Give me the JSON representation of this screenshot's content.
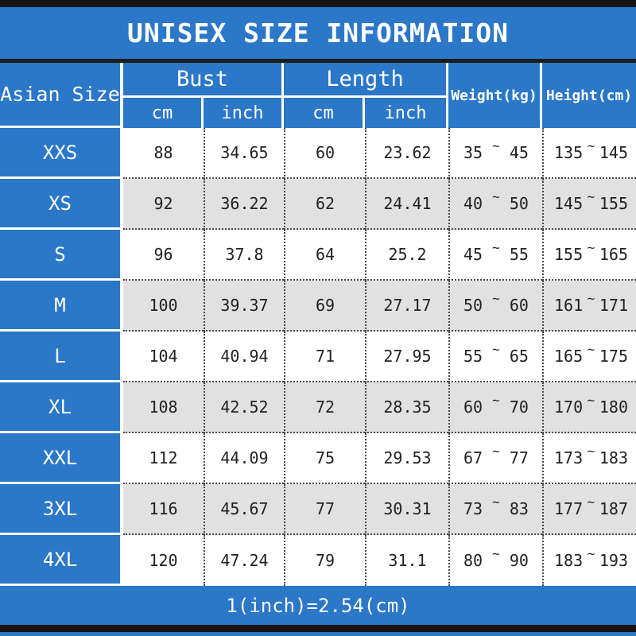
{
  "title": "UNISEX SIZE INFORMATION",
  "footer_note": "1(inch)=2.54(cm)",
  "colors": {
    "accent_blue": "#2b77c8",
    "bar_black": "#151515",
    "row_alt_gray": "#e1e1e1",
    "text_dark": "#222222"
  },
  "table": {
    "headers": {
      "size": "Asian Size",
      "bust": "Bust",
      "length": "Length",
      "weight": "Weight(kg)",
      "height": "Height(cm)",
      "unit_cm": "cm",
      "unit_inch": "inch"
    },
    "range_separator": "~",
    "rows": [
      {
        "size": "XXS",
        "bust_cm": "88",
        "bust_inch": "34.65",
        "length_cm": "60",
        "length_inch": "23.62",
        "weight_min": "35",
        "weight_max": "45",
        "height_min": "135",
        "height_max": "145"
      },
      {
        "size": "XS",
        "bust_cm": "92",
        "bust_inch": "36.22",
        "length_cm": "62",
        "length_inch": "24.41",
        "weight_min": "40",
        "weight_max": "50",
        "height_min": "145",
        "height_max": "155"
      },
      {
        "size": "S",
        "bust_cm": "96",
        "bust_inch": "37.8",
        "length_cm": "64",
        "length_inch": "25.2",
        "weight_min": "45",
        "weight_max": "55",
        "height_min": "155",
        "height_max": "165"
      },
      {
        "size": "M",
        "bust_cm": "100",
        "bust_inch": "39.37",
        "length_cm": "69",
        "length_inch": "27.17",
        "weight_min": "50",
        "weight_max": "60",
        "height_min": "161",
        "height_max": "171"
      },
      {
        "size": "L",
        "bust_cm": "104",
        "bust_inch": "40.94",
        "length_cm": "71",
        "length_inch": "27.95",
        "weight_min": "55",
        "weight_max": "65",
        "height_min": "165",
        "height_max": "175"
      },
      {
        "size": "XL",
        "bust_cm": "108",
        "bust_inch": "42.52",
        "length_cm": "72",
        "length_inch": "28.35",
        "weight_min": "60",
        "weight_max": "70",
        "height_min": "170",
        "height_max": "180"
      },
      {
        "size": "XXL",
        "bust_cm": "112",
        "bust_inch": "44.09",
        "length_cm": "75",
        "length_inch": "29.53",
        "weight_min": "67",
        "weight_max": "77",
        "height_min": "173",
        "height_max": "183"
      },
      {
        "size": "3XL",
        "bust_cm": "116",
        "bust_inch": "45.67",
        "length_cm": "77",
        "length_inch": "30.31",
        "weight_min": "73",
        "weight_max": "83",
        "height_min": "177",
        "height_max": "187"
      },
      {
        "size": "4XL",
        "bust_cm": "120",
        "bust_inch": "47.24",
        "length_cm": "79",
        "length_inch": "31.1",
        "weight_min": "80",
        "weight_max": "90",
        "height_min": "183",
        "height_max": "193"
      }
    ]
  }
}
